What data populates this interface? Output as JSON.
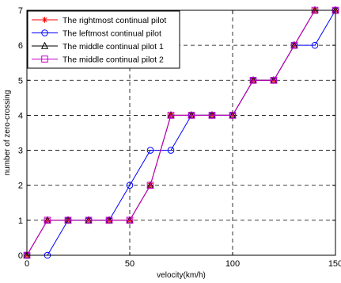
{
  "chart_data": {
    "type": "line",
    "xlabel": "velocity(km/h)",
    "ylabel": "number of zero-crossing",
    "xlim": [
      0,
      150
    ],
    "ylim": [
      0,
      7
    ],
    "xticks": [
      "0",
      "50",
      "100",
      "150"
    ],
    "yticks": [
      "0",
      "1",
      "2",
      "3",
      "4",
      "5",
      "6",
      "7"
    ],
    "grid": true,
    "legend_position": "top-left",
    "x": [
      0,
      10,
      20,
      30,
      40,
      50,
      60,
      70,
      80,
      90,
      100,
      110,
      120,
      130,
      140,
      150
    ],
    "series": [
      {
        "name": "The rightmost continual pilot",
        "color": "#ff0000",
        "marker": "star",
        "values": [
          0,
          1,
          1,
          1,
          1,
          1,
          2,
          4,
          4,
          4,
          4,
          5,
          5,
          6,
          7,
          7
        ]
      },
      {
        "name": "The leftmost continual pilot",
        "color": "#0000ff",
        "marker": "circle",
        "values": [
          0,
          0,
          1,
          1,
          1,
          2,
          3,
          3,
          4,
          4,
          4,
          5,
          5,
          6,
          6,
          7
        ]
      },
      {
        "name": "The middle continual pilot 1",
        "color": "#000000",
        "marker": "triangle",
        "values": [
          0,
          1,
          1,
          1,
          1,
          1,
          2,
          4,
          4,
          4,
          4,
          5,
          5,
          6,
          7,
          7
        ]
      },
      {
        "name": "The middle continual pilot 2",
        "color": "#cc00cc",
        "marker": "square",
        "values": [
          0,
          1,
          1,
          1,
          1,
          1,
          2,
          4,
          4,
          4,
          4,
          5,
          5,
          6,
          7,
          7
        ]
      }
    ]
  }
}
